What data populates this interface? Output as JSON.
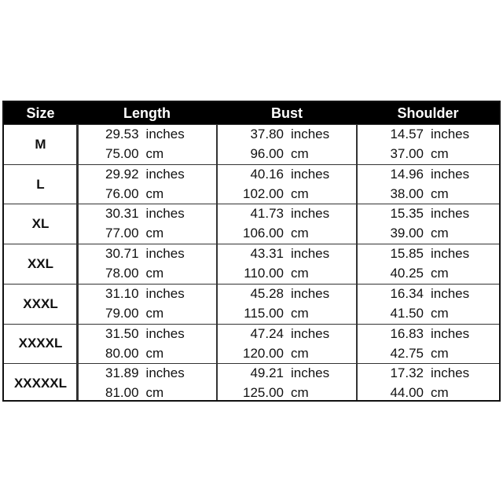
{
  "headers": [
    "Size",
    "Length",
    "Bust",
    "Shoulder"
  ],
  "units": {
    "inches": "inches",
    "cm": "cm"
  },
  "rows": [
    {
      "size": "M",
      "length": [
        "29.53",
        "75.00"
      ],
      "bust": [
        "37.80",
        "96.00"
      ],
      "shoulder": [
        "14.57",
        "37.00"
      ]
    },
    {
      "size": "L",
      "length": [
        "29.92",
        "76.00"
      ],
      "bust": [
        "40.16",
        "102.00"
      ],
      "shoulder": [
        "14.96",
        "38.00"
      ]
    },
    {
      "size": "XL",
      "length": [
        "30.31",
        "77.00"
      ],
      "bust": [
        "41.73",
        "106.00"
      ],
      "shoulder": [
        "15.35",
        "39.00"
      ]
    },
    {
      "size": "XXL",
      "length": [
        "30.71",
        "78.00"
      ],
      "bust": [
        "43.31",
        "110.00"
      ],
      "shoulder": [
        "15.85",
        "40.25"
      ]
    },
    {
      "size": "XXXL",
      "length": [
        "31.10",
        "79.00"
      ],
      "bust": [
        "45.28",
        "115.00"
      ],
      "shoulder": [
        "16.34",
        "41.50"
      ]
    },
    {
      "size": "XXXXL",
      "length": [
        "31.50",
        "80.00"
      ],
      "bust": [
        "47.24",
        "120.00"
      ],
      "shoulder": [
        "16.83",
        "42.75"
      ]
    },
    {
      "size": "XXXXXL",
      "length": [
        "31.89",
        "81.00"
      ],
      "bust": [
        "49.21",
        "125.00"
      ],
      "shoulder": [
        "17.32",
        "44.00"
      ]
    }
  ]
}
